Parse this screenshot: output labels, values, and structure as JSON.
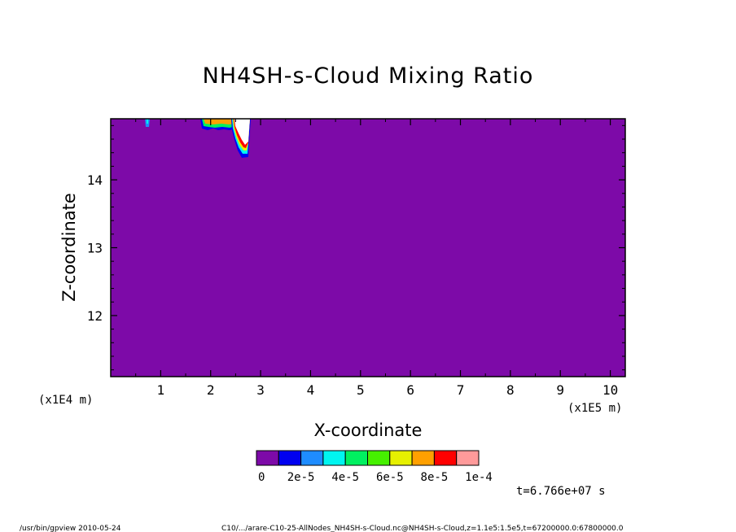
{
  "chart_data": {
    "type": "heatmap",
    "title": "NH4SH-s-Cloud Mixing Ratio",
    "xlabel": "X-coordinate",
    "ylabel": "Z-coordinate",
    "x_scale_note": "(x1E5 m)",
    "y_scale_note": "(x1E4 m)",
    "xlim": [
      0,
      10.3
    ],
    "ylim": [
      11.1,
      14.9
    ],
    "x_ticks": [
      "1",
      "2",
      "3",
      "4",
      "5",
      "6",
      "7",
      "8",
      "9",
      "10"
    ],
    "y_ticks": [
      "12",
      "13",
      "14"
    ],
    "background_value": 0,
    "colorbar": {
      "colors": [
        "#7d0aa8",
        "#0000f0",
        "#1e8cff",
        "#00f5f0",
        "#00f060",
        "#46f000",
        "#e6f000",
        "#ffa000",
        "#ff0000",
        "#ff9a9a"
      ],
      "labels": [
        "0",
        "2e-5",
        "4e-5",
        "6e-5",
        "8e-5",
        "1e-4"
      ]
    },
    "time_label": "t=6.766e+07 s",
    "features": [
      {
        "kind": "cloud",
        "x_range": [
          2.4,
          2.75
        ],
        "z_range": [
          14.35,
          14.9
        ],
        "max_value": "1e-4"
      },
      {
        "kind": "cloud",
        "x_range": [
          1.8,
          2.4
        ],
        "z_range": [
          14.75,
          14.9
        ],
        "max_value": "8e-5"
      },
      {
        "kind": "cloud",
        "x_range": [
          0.7,
          0.8
        ],
        "z_range": [
          14.8,
          14.9
        ],
        "max_value": "2e-5"
      }
    ]
  },
  "footer": {
    "left": "/usr/bin/gpview  2010-05-24",
    "right": "C10/.../arare-C10-25-AllNodes_NH4SH-s-Cloud.nc@NH4SH-s-Cloud,z=1.1e5:1.5e5,t=67200000.0:67800000.0"
  }
}
